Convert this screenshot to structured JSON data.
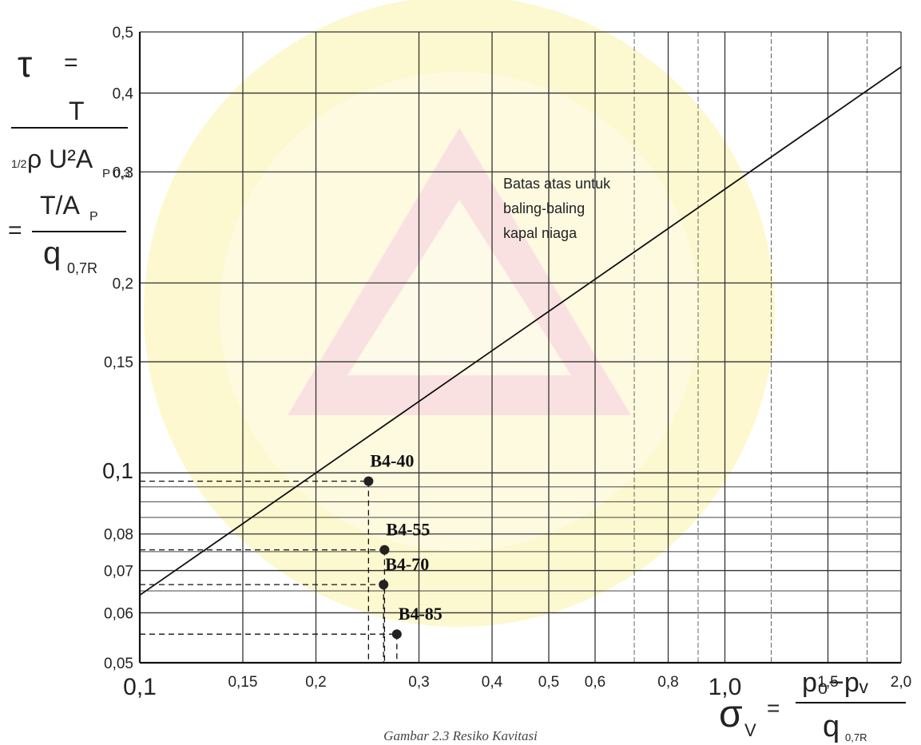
{
  "chart_data": {
    "type": "scatter",
    "x_scale": "log",
    "y_scale": "log",
    "xlim": [
      0.1,
      2.0
    ],
    "ylim": [
      0.05,
      0.5
    ],
    "grid": true,
    "x_ticks": [
      0.1,
      0.15,
      0.2,
      0.3,
      0.4,
      0.5,
      0.6,
      0.8,
      1.0,
      1.5,
      2.0
    ],
    "x_tick_labels": [
      "0,1",
      "0,15",
      "0,2",
      "0,3",
      "0,4",
      "0,5",
      "0,6",
      "0,8",
      "1,0",
      "1,5",
      "2,0"
    ],
    "y_ticks": [
      0.05,
      0.06,
      0.07,
      0.08,
      0.1,
      0.15,
      0.2,
      0.3,
      0.4,
      0.5
    ],
    "y_tick_labels": [
      "0,05",
      "0,06",
      "0,07",
      "0,08",
      "0,1",
      "0,15",
      "0,2",
      "0,3",
      "0,4",
      "0,5"
    ],
    "ylabel": {
      "symbol": "τ",
      "eq": "=",
      "num1": "T",
      "den1_half": "1/2",
      "den1_rho": "ρ U²A",
      "den1_sub": "P 0,3",
      "eq2": "=",
      "num2": "T/A",
      "num2_sub": "P",
      "den2": "q",
      "den2_sub": "0,7R"
    },
    "xlabel": {
      "symbol": "σ",
      "symbol_sub": "V",
      "eq": "=",
      "num": "p₀−pᵥ",
      "den": "q",
      "den_sub": "0,7R"
    },
    "limit_line": {
      "label": [
        "Batas atas untuk",
        "baling-baling",
        "kapal niaga"
      ],
      "points": [
        [
          0.1,
          0.064
        ],
        [
          2.0,
          0.44
        ]
      ]
    },
    "points": [
      {
        "name": "B4-40",
        "x": 0.246,
        "y": 0.097
      },
      {
        "name": "B4-55",
        "x": 0.262,
        "y": 0.0755
      },
      {
        "name": "B4-70",
        "x": 0.261,
        "y": 0.0665
      },
      {
        "name": "B4-85",
        "x": 0.275,
        "y": 0.0555
      }
    ],
    "y_grid_extra": [
      0.065,
      0.075,
      0.085,
      0.09,
      0.095
    ]
  },
  "caption": "Gambar 2.3 Resiko Kavitasi"
}
